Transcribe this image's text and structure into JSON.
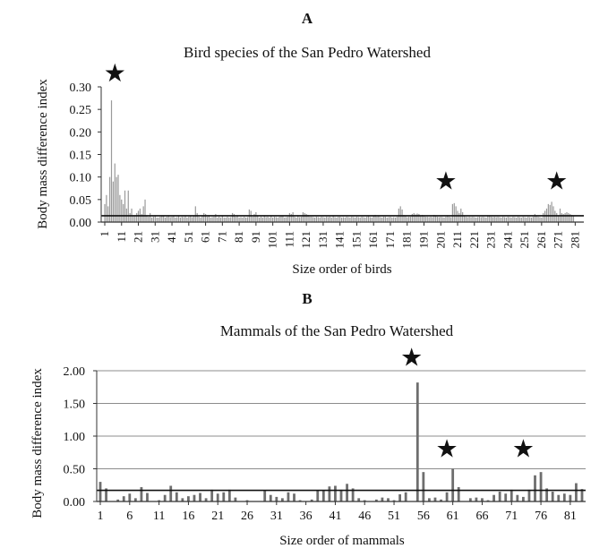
{
  "figure": {
    "panels": [
      "A",
      "B"
    ],
    "markers": {
      "star": "★"
    }
  },
  "chart_data": [
    {
      "type": "bar",
      "panel_label": "A",
      "title": "Bird species of the San Pedro Watershed",
      "xlabel": "Size order of birds",
      "ylabel": "Body mass difference index",
      "ylim": [
        0,
        0.3
      ],
      "yticks": [
        "0.00",
        "0.05",
        "0.10",
        "0.15",
        "0.20",
        "0.25",
        "0.30"
      ],
      "xticks": [
        1,
        11,
        21,
        31,
        41,
        51,
        61,
        71,
        81,
        91,
        101,
        111,
        121,
        131,
        141,
        151,
        161,
        171,
        181,
        191,
        201,
        211,
        221,
        231,
        241,
        251,
        261,
        271,
        281
      ],
      "x_range": [
        1,
        284
      ],
      "reference_line": 0.014,
      "grid": false,
      "highlights": [
        {
          "marker": "star",
          "x": 7,
          "y": 0.33
        },
        {
          "marker": "star",
          "x": 204,
          "y": 0.09
        },
        {
          "marker": "star",
          "x": 270,
          "y": 0.09
        }
      ],
      "values": [
        0.04,
        0.06,
        0.035,
        0.1,
        0.27,
        0.09,
        0.13,
        0.1,
        0.105,
        0.06,
        0.05,
        0.04,
        0.07,
        0.03,
        0.07,
        0.02,
        0.03,
        0.015,
        0.015,
        0.02,
        0.025,
        0.03,
        0.018,
        0.035,
        0.05,
        0.015,
        0.012,
        0.02,
        0.01,
        0.012,
        0.015,
        0.01,
        0.01,
        0.012,
        0.013,
        0.015,
        0.01,
        0.012,
        0.013,
        0.011,
        0.012,
        0.014,
        0.01,
        0.011,
        0.015,
        0.01,
        0.012,
        0.011,
        0.015,
        0.01,
        0.012,
        0.013,
        0.011,
        0.015,
        0.035,
        0.02,
        0.012,
        0.01,
        0.014,
        0.02,
        0.018,
        0.012,
        0.015,
        0.01,
        0.011,
        0.012,
        0.018,
        0.01,
        0.012,
        0.01,
        0.015,
        0.01,
        0.01,
        0.012,
        0.01,
        0.011,
        0.02,
        0.018,
        0.012,
        0.015,
        0.01,
        0.011,
        0.01,
        0.012,
        0.01,
        0.011,
        0.028,
        0.025,
        0.012,
        0.018,
        0.022,
        0.015,
        0.01,
        0.012,
        0.01,
        0.013,
        0.011,
        0.012,
        0.01,
        0.015,
        0.01,
        0.012,
        0.011,
        0.01,
        0.012,
        0.015,
        0.014,
        0.01,
        0.011,
        0.012,
        0.02,
        0.018,
        0.022,
        0.012,
        0.01,
        0.015,
        0.011,
        0.012,
        0.022,
        0.02,
        0.018,
        0.016,
        0.012,
        0.012,
        0.011,
        0.01,
        0.012,
        0.011,
        0.01,
        0.012,
        0.011,
        0.01,
        0.012,
        0.011,
        0.012,
        0.01,
        0.013,
        0.011,
        0.01,
        0.012,
        0.012,
        0.01,
        0.011,
        0.01,
        0.012,
        0.011,
        0.01,
        0.012,
        0.011,
        0.01,
        0.012,
        0.011,
        0.01,
        0.012,
        0.011,
        0.01,
        0.012,
        0.013,
        0.011,
        0.01,
        0.015,
        0.016,
        0.012,
        0.014,
        0.011,
        0.01,
        0.012,
        0.012,
        0.01,
        0.011,
        0.012,
        0.01,
        0.011,
        0.01,
        0.012,
        0.03,
        0.035,
        0.028,
        0.016,
        0.015,
        0.011,
        0.012,
        0.012,
        0.018,
        0.02,
        0.017,
        0.019,
        0.018,
        0.015,
        0.016,
        0.014,
        0.012,
        0.012,
        0.011,
        0.012,
        0.011,
        0.016,
        0.015,
        0.012,
        0.011,
        0.012,
        0.011,
        0.01,
        0.012,
        0.013,
        0.012,
        0.011,
        0.04,
        0.042,
        0.035,
        0.025,
        0.02,
        0.03,
        0.022,
        0.015,
        0.012,
        0.011,
        0.012,
        0.011,
        0.012,
        0.011,
        0.01,
        0.011,
        0.012,
        0.011,
        0.012,
        0.011,
        0.01,
        0.015,
        0.014,
        0.012,
        0.011,
        0.012,
        0.011,
        0.012,
        0.011,
        0.01,
        0.012,
        0.011,
        0.01,
        0.012,
        0.011,
        0.01,
        0.012,
        0.011,
        0.01,
        0.012,
        0.011,
        0.01,
        0.012,
        0.011,
        0.01,
        0.012,
        0.011,
        0.01,
        0.012,
        0.018,
        0.015,
        0.012,
        0.011,
        0.01,
        0.02,
        0.025,
        0.03,
        0.04,
        0.038,
        0.045,
        0.035,
        0.025,
        0.02,
        0.015,
        0.03,
        0.02,
        0.018,
        0.02,
        0.022,
        0.02,
        0.018,
        0.016,
        0.015
      ]
    },
    {
      "type": "bar",
      "panel_label": "B",
      "title": "Mammals of the San Pedro Watershed",
      "xlabel": "Size order of mammals",
      "ylabel": "Body mass difference index",
      "ylim": [
        0,
        2.0
      ],
      "yticks": [
        "0.00",
        "0.50",
        "1.00",
        "1.50",
        "2.00"
      ],
      "xticks": [
        1,
        6,
        11,
        16,
        21,
        26,
        31,
        36,
        41,
        46,
        51,
        56,
        61,
        66,
        71,
        76,
        81
      ],
      "x_range": [
        1,
        83
      ],
      "reference_line": 0.17,
      "grid": true,
      "highlights": [
        {
          "marker": "star",
          "x": 54,
          "y": 2.2
        },
        {
          "marker": "star",
          "x": 60,
          "y": 0.8
        },
        {
          "marker": "star",
          "x": 73,
          "y": 0.8
        }
      ],
      "values": [
        0.3,
        0.2,
        0.0,
        0.03,
        0.08,
        0.12,
        0.05,
        0.22,
        0.13,
        0.0,
        0.02,
        0.1,
        0.24,
        0.14,
        0.05,
        0.08,
        0.1,
        0.13,
        0.05,
        0.18,
        0.12,
        0.14,
        0.18,
        0.06,
        0.0,
        0.02,
        0.0,
        0.0,
        0.17,
        0.1,
        0.07,
        0.05,
        0.14,
        0.12,
        0.02,
        0.0,
        0.03,
        0.17,
        0.17,
        0.23,
        0.24,
        0.18,
        0.27,
        0.2,
        0.05,
        0.02,
        0.0,
        0.03,
        0.06,
        0.05,
        0.02,
        0.11,
        0.14,
        0.0,
        1.82,
        0.45,
        0.05,
        0.06,
        0.03,
        0.14,
        0.5,
        0.22,
        0.0,
        0.05,
        0.06,
        0.05,
        0.02,
        0.1,
        0.15,
        0.12,
        0.18,
        0.1,
        0.07,
        0.18,
        0.4,
        0.45,
        0.2,
        0.15,
        0.1,
        0.12,
        0.1,
        0.28,
        0.19
      ]
    }
  ]
}
